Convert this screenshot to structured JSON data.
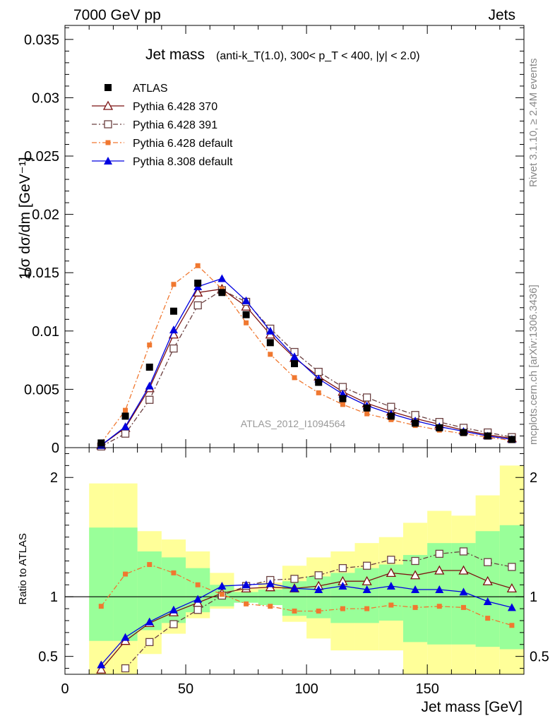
{
  "header": {
    "energy_label": "7000 GeV pp",
    "process_label": "Jets"
  },
  "side_labels": {
    "rivet": "Rivet 3.1.10, ≥ 2.4M events",
    "mcplots": "mcplots.cern.ch [arXiv:1306.3436]"
  },
  "chart_data": [
    {
      "type": "line",
      "panel": "main",
      "title_main": "Jet mass",
      "title_details": "(anti-k_T(1.0), 300< p_T < 400, |y| < 2.0)",
      "ylabel": "1/σ dσ/dm [GeV⁻¹]",
      "analysis_label": "ATLAS_2012_I1094564",
      "xlim": [
        0,
        190
      ],
      "ylim": [
        0,
        0.0362
      ],
      "y_tick_labels": [
        "0",
        "0.005",
        "0.01",
        "0.015",
        "0.02",
        "0.025",
        "0.03",
        "0.035"
      ],
      "x": [
        15,
        25,
        35,
        45,
        55,
        65,
        75,
        85,
        95,
        105,
        115,
        125,
        135,
        145,
        155,
        165,
        175,
        185
      ],
      "legend_placement": "top-left",
      "series": [
        {
          "name": "ATLAS",
          "color": "#000000",
          "marker": "square-filled",
          "line": "none",
          "values": [
            0.0004,
            0.0027,
            0.0069,
            0.0117,
            0.0141,
            0.0133,
            0.0114,
            0.009,
            0.0072,
            0.0056,
            0.0042,
            0.0034,
            0.0027,
            0.0021,
            0.0017,
            0.0013,
            0.001,
            0.0007
          ]
        },
        {
          "name": "Pythia 6.428 370",
          "color": "#7b1010",
          "marker": "triangle-open",
          "line": "solid",
          "values": [
            0.0002,
            0.0017,
            0.0051,
            0.0097,
            0.0133,
            0.0136,
            0.0121,
            0.0097,
            0.0077,
            0.0061,
            0.0048,
            0.0038,
            0.0031,
            0.0025,
            0.002,
            0.0015,
            0.0011,
            0.0008
          ]
        },
        {
          "name": "Pythia 6.428 391",
          "color": "#6b4040",
          "marker": "square-open",
          "line": "dashdot",
          "values": [
            0.0001,
            0.0012,
            0.0041,
            0.0085,
            0.0122,
            0.0135,
            0.0125,
            0.0102,
            0.0082,
            0.0065,
            0.0052,
            0.0043,
            0.0035,
            0.0028,
            0.0022,
            0.0017,
            0.0013,
            0.0009
          ]
        },
        {
          "name": "Pythia 6.428 default",
          "color": "#f07830",
          "marker": "square-filled-small",
          "line": "dashdot",
          "values": [
            0.0004,
            0.0032,
            0.0088,
            0.014,
            0.0156,
            0.0136,
            0.0107,
            0.008,
            0.006,
            0.0047,
            0.0037,
            0.0029,
            0.0024,
            0.0019,
            0.0015,
            0.0012,
            0.0009,
            0.0006
          ]
        },
        {
          "name": "Pythia 8.308 default",
          "color": "#0000e0",
          "marker": "triangle-filled",
          "line": "solid",
          "values": [
            0.0002,
            0.0018,
            0.0053,
            0.0101,
            0.0138,
            0.0145,
            0.0126,
            0.01,
            0.0078,
            0.0059,
            0.0046,
            0.0036,
            0.0029,
            0.0023,
            0.0018,
            0.0014,
            0.001,
            0.0007
          ]
        }
      ]
    },
    {
      "type": "line",
      "panel": "ratio",
      "xlabel": "Jet mass [GeV]",
      "ylabel": "Ratio to ATLAS",
      "xlim": [
        0,
        190
      ],
      "ylim": [
        0.35,
        2.25
      ],
      "x_tick_labels": [
        "0",
        "50",
        "100",
        "150"
      ],
      "y_tick_labels": [
        "0.5",
        "1",
        "2"
      ],
      "bins": [
        10,
        20,
        30,
        40,
        50,
        60,
        70,
        80,
        90,
        100,
        110,
        120,
        130,
        140,
        150,
        160,
        170,
        180,
        190
      ],
      "bands": [
        {
          "color": "#ffff99",
          "low": [
            0.35,
            0.35,
            0.52,
            0.69,
            0.82,
            0.9,
            0.97,
            0.95,
            0.79,
            0.65,
            0.55,
            0.55,
            0.55,
            0.35,
            0.35,
            0.35,
            0.35,
            0.35
          ],
          "high": [
            1.95,
            1.95,
            1.55,
            1.48,
            1.38,
            1.2,
            1.07,
            1.12,
            1.26,
            1.33,
            1.38,
            1.45,
            1.5,
            1.62,
            1.72,
            1.68,
            1.85,
            2.1
          ]
        },
        {
          "color": "#99ff99",
          "low": [
            0.63,
            0.63,
            0.72,
            0.78,
            0.87,
            0.92,
            0.95,
            0.93,
            0.84,
            0.82,
            0.78,
            0.78,
            0.8,
            0.62,
            0.6,
            0.6,
            0.58,
            0.56
          ],
          "high": [
            1.58,
            1.58,
            1.38,
            1.33,
            1.24,
            1.1,
            1.04,
            1.06,
            1.13,
            1.17,
            1.2,
            1.24,
            1.27,
            1.35,
            1.45,
            1.45,
            1.55,
            1.6
          ]
        }
      ],
      "x": [
        15,
        25,
        35,
        45,
        55,
        65,
        75,
        85,
        95,
        105,
        115,
        125,
        135,
        145,
        155,
        165,
        175,
        185
      ],
      "series": [
        {
          "name": "Pythia 6.428 370",
          "color": "#7b1010",
          "marker": "triangle-open",
          "line": "solid",
          "values": [
            0.39,
            0.63,
            0.78,
            0.87,
            0.95,
            1.03,
            1.07,
            1.08,
            1.07,
            1.09,
            1.13,
            1.13,
            1.2,
            1.18,
            1.22,
            1.22,
            1.13,
            1.07
          ]
        },
        {
          "name": "Pythia 6.428 391",
          "color": "#6b4040",
          "marker": "square-open",
          "line": "dashdot",
          "values": [
            0.2,
            0.4,
            0.62,
            0.77,
            0.89,
            1.01,
            1.09,
            1.14,
            1.15,
            1.18,
            1.24,
            1.26,
            1.31,
            1.3,
            1.36,
            1.38,
            1.29,
            1.25
          ]
        },
        {
          "name": "Pythia 6.428 default",
          "color": "#f07830",
          "marker": "square-filled-small",
          "line": "dashdot",
          "values": [
            0.92,
            1.19,
            1.27,
            1.2,
            1.1,
            1.02,
            0.94,
            0.92,
            0.88,
            0.88,
            0.9,
            0.9,
            0.93,
            0.91,
            0.92,
            0.91,
            0.82,
            0.76
          ]
        },
        {
          "name": "Pythia 8.308 default",
          "color": "#0000e0",
          "marker": "triangle-filled",
          "line": "solid",
          "values": [
            0.43,
            0.66,
            0.79,
            0.89,
            0.98,
            1.09,
            1.1,
            1.11,
            1.07,
            1.06,
            1.09,
            1.06,
            1.09,
            1.06,
            1.06,
            1.04,
            0.96,
            0.91
          ]
        }
      ]
    }
  ]
}
